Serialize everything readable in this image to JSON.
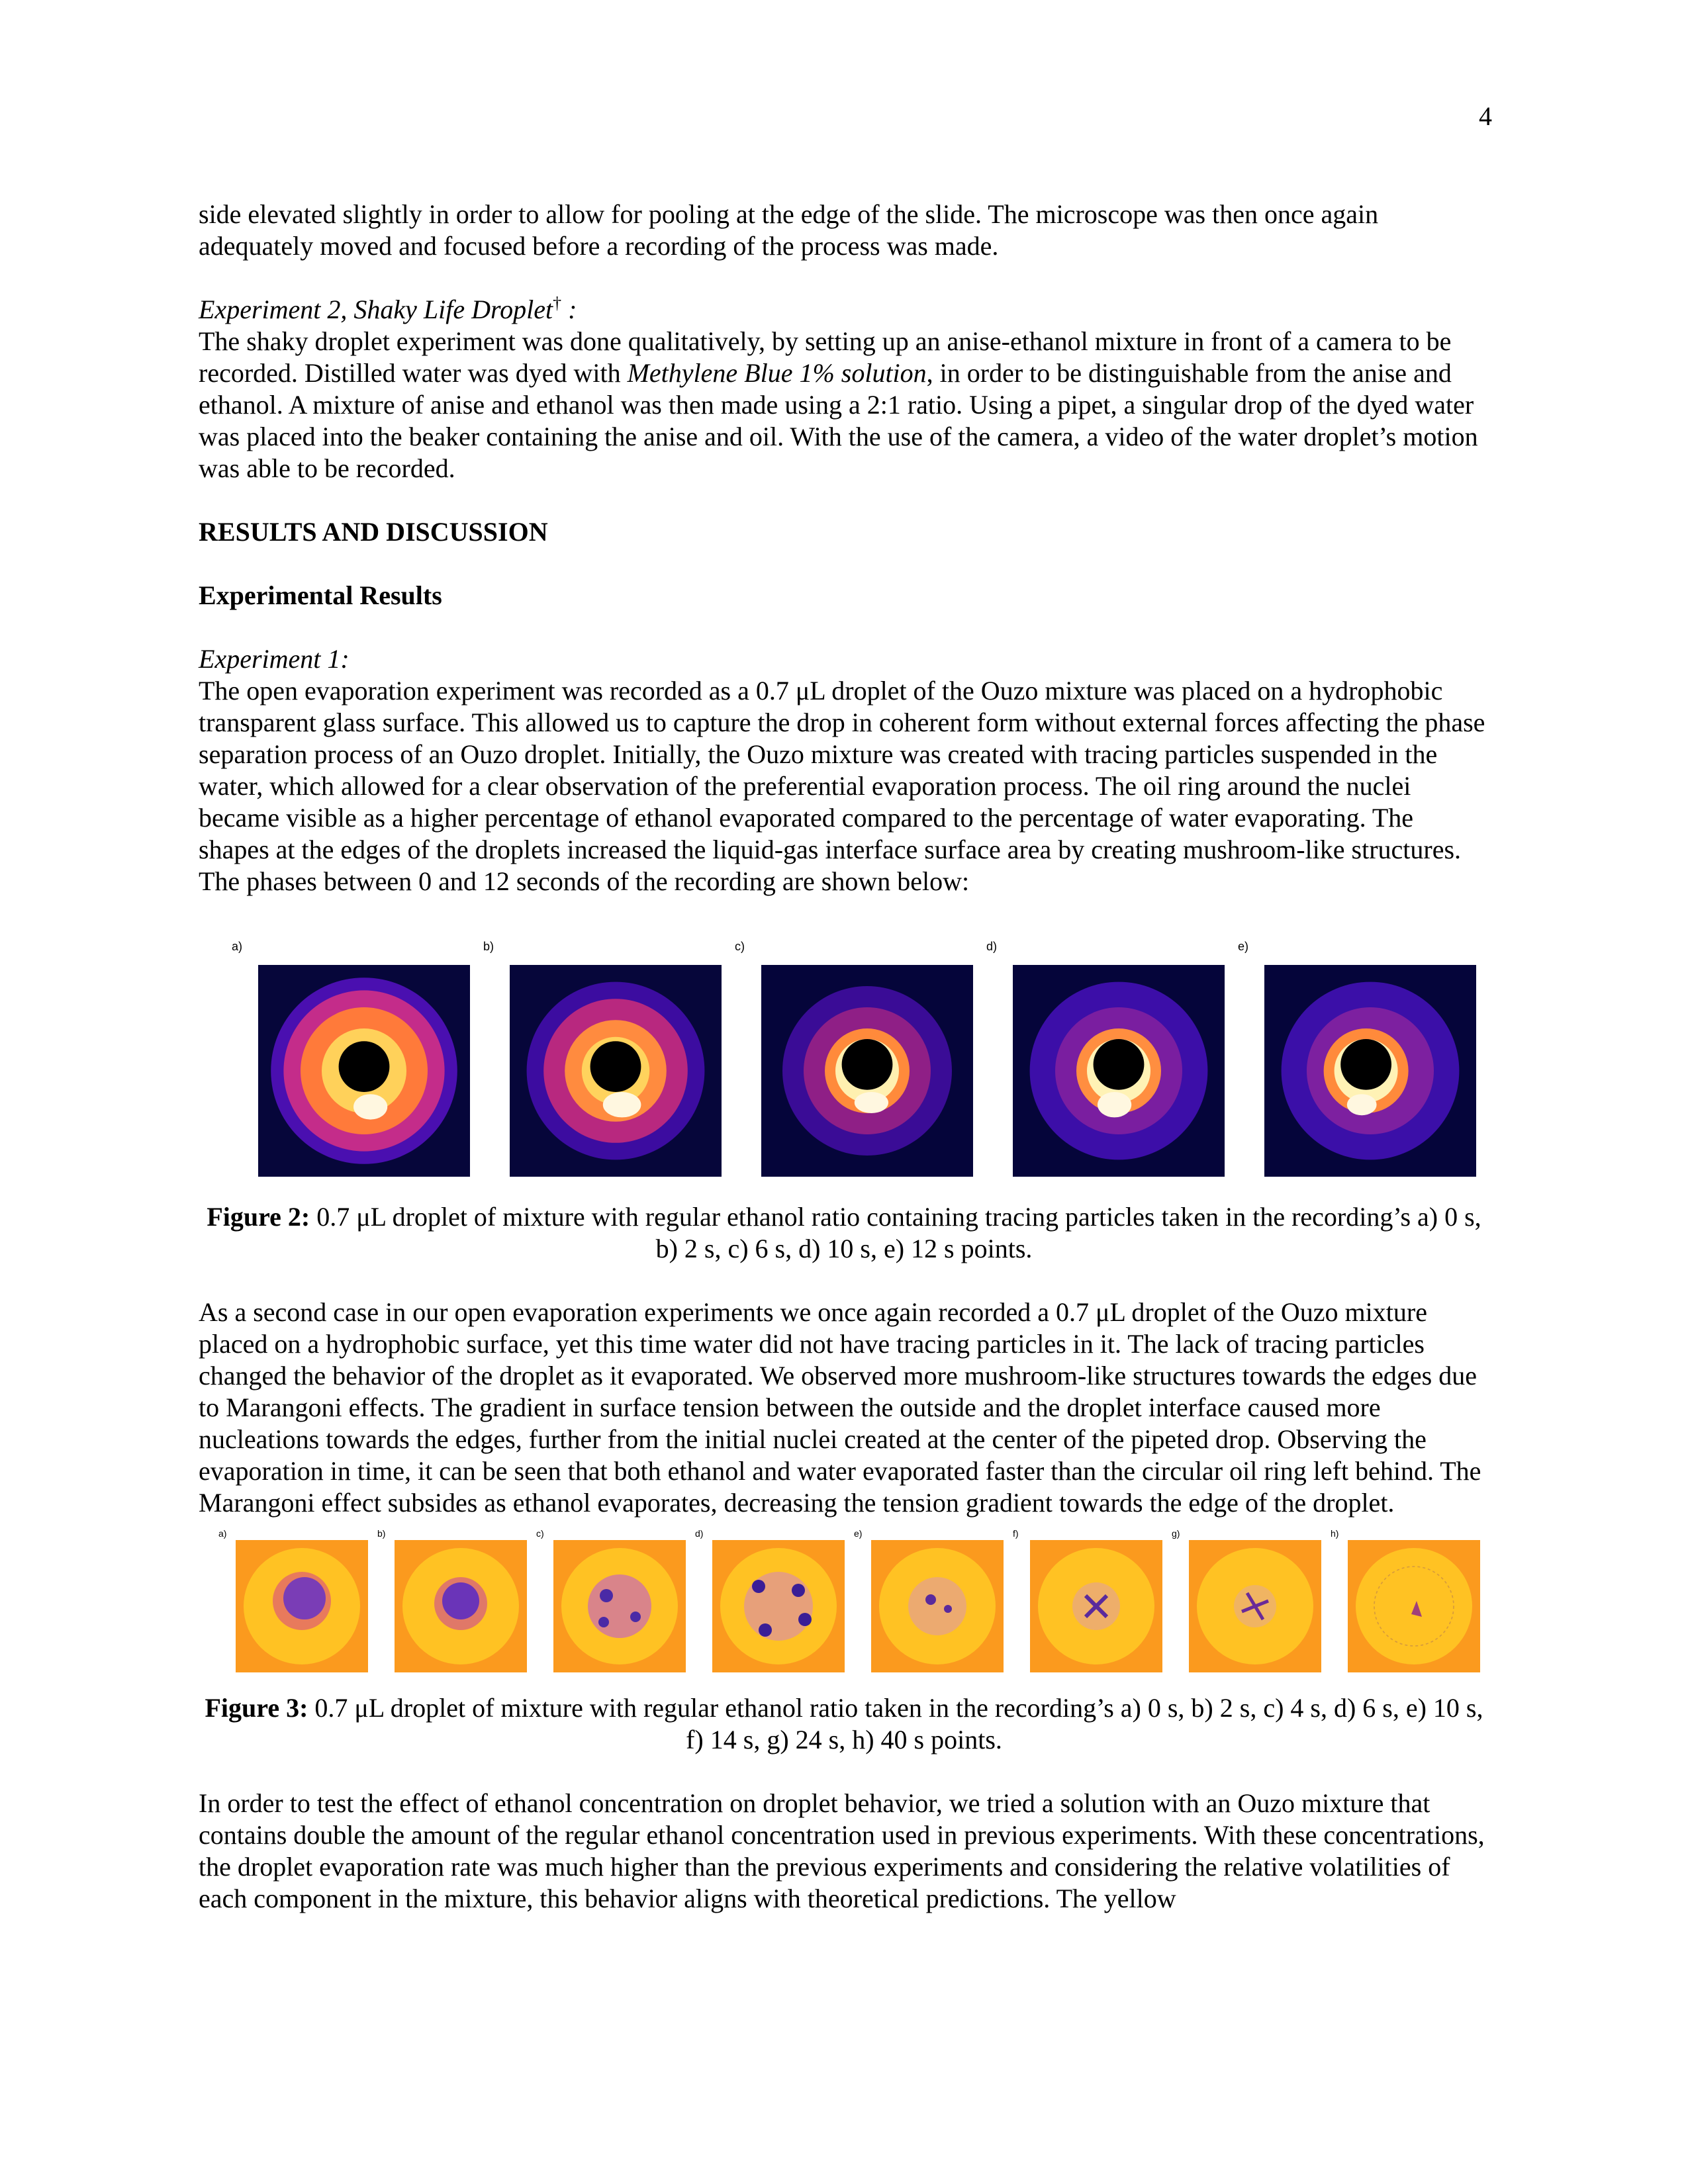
{
  "page_number": "4",
  "intro_paragraph": "side elevated slightly in order to allow for pooling at the edge of the slide. The microscope was then once again adequately moved and focused before a recording of the process was made.",
  "exp2": {
    "title": "Experiment 2, Shaky Life Droplet",
    "dagger": "†",
    "title_suffix": " :",
    "text_before_italic": "The shaky droplet experiment was done qualitatively, by setting up an anise-ethanol mixture in front of a camera to be recorded. Distilled water was dyed with ",
    "italic": "Methylene Blue 1% solution",
    "text_after_italic": ", in order to be distinguishable from the anise and ethanol. A mixture of anise and ethanol was then made using a 2:1 ratio. Using a pipet, a singular drop of the dyed water was placed into the beaker containing the anise and oil. With the use of the camera, a video of the water droplet’s motion was able to be recorded."
  },
  "results_heading": "RESULTS AND DISCUSSION",
  "experimental_results_heading": "Experimental Results",
  "exp1": {
    "title": "Experiment 1:",
    "text": "The open evaporation experiment was recorded as a  0.7 μL droplet of the Ouzo mixture was placed on a hydrophobic transparent glass surface. This allowed us to capture the drop in coherent form without external forces affecting the phase separation process of an Ouzo droplet. Initially, the Ouzo mixture was created with tracing particles suspended in the water, which allowed for a clear observation of the preferential evaporation process. The oil ring around the nuclei became visible as a higher percentage of ethanol evaporated compared to the percentage of water evaporating. The shapes at the edges of the droplets increased the liquid-gas interface surface area by creating mushroom-like structures. The phases between 0 and 12 seconds of the recording are shown below:"
  },
  "figure2": {
    "panels": [
      "a)",
      "b)",
      "c)",
      "d)",
      "e)"
    ],
    "caption_label": "Figure 2:",
    "caption_text": " 0.7 μL droplet of mixture with regular ethanol ratio containing tracing particles taken in the recording’s a) 0 s, b)  2 s, c) 6 s, d) 10 s, e) 12 s points."
  },
  "paragraph_second_case": "As a second case in our open evaporation experiments we once again recorded a 0.7 μL droplet of the Ouzo mixture placed on a hydrophobic surface, yet this time water did not have tracing particles in it. The lack of tracing particles changed the behavior of the droplet as it evaporated. We observed more mushroom-like structures towards the edges due to Marangoni effects. The gradient in surface tension between the outside and the droplet interface caused more nucleations towards the edges, further from the initial nuclei created at the center of the pipeted drop. Observing the evaporation in time, it can be seen that both ethanol and water evaporated faster than the circular oil ring left behind. The Marangoni effect subsides as ethanol evaporates, decreasing the tension gradient towards the edge of the droplet.",
  "figure3": {
    "panels": [
      "a)",
      "b)",
      "c)",
      "d)",
      "e)",
      "f)",
      "g)",
      "h)"
    ],
    "caption_label": "Figure 3:",
    "caption_text": " 0.7 μL droplet of mixture with regular ethanol ratio taken in the recording’s a) 0 s, b)  2 s, c) 4 s, d) 6 s, e) 10 s, f) 14 s, g) 24 s, h) 40 s  points."
  },
  "paragraph_ethanol": "In order to test the effect of ethanol concentration on droplet behavior, we tried a solution with an Ouzo mixture that contains double the amount of the regular ethanol concentration used in previous experiments. With these concentrations, the droplet evaporation rate was much higher than the previous experiments and considering the relative volatilities of each component in the mixture, this behavior aligns with theoretical predictions. The yellow"
}
